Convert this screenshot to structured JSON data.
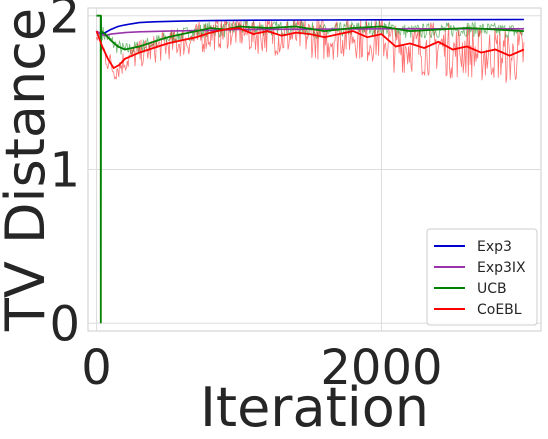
{
  "chart_data": {
    "type": "line",
    "title": "",
    "xlabel": "Iteration",
    "ylabel": "TV Distance",
    "xlim": [
      -60,
      3120
    ],
    "ylim": [
      -0.05,
      2.05
    ],
    "xticks": [
      0,
      2000
    ],
    "yticks": [
      0,
      1,
      2
    ],
    "grid": true,
    "legend_position": "bottom-right",
    "series": [
      {
        "name": "Exp3",
        "color": "#0000cc",
        "x": [
          0,
          30,
          60,
          100,
          150,
          200,
          300,
          400,
          600,
          800,
          1000,
          1500,
          2000,
          2500,
          3000
        ],
        "y": [
          1.9,
          1.88,
          1.89,
          1.91,
          1.93,
          1.94,
          1.955,
          1.96,
          1.965,
          1.968,
          1.97,
          1.972,
          1.973,
          1.974,
          1.975
        ]
      },
      {
        "name": "Exp3IX",
        "color": "#9933aa",
        "x": [
          0,
          30,
          60,
          100,
          200,
          300,
          500,
          800,
          1000,
          1500,
          2000,
          2500,
          3000
        ],
        "y": [
          1.9,
          1.88,
          1.87,
          1.88,
          1.89,
          1.895,
          1.9,
          1.905,
          1.91,
          1.912,
          1.915,
          1.915,
          1.915
        ]
      },
      {
        "name": "UCB",
        "color": "#008000",
        "x": [
          0,
          29,
          30,
          31,
          32,
          60,
          100,
          150,
          200,
          300,
          400,
          500,
          600,
          700,
          800,
          900,
          1000,
          1200,
          1400,
          1600,
          1800,
          2000,
          2200,
          2400,
          2600,
          2800,
          3000
        ],
        "y": [
          2.0,
          2.0,
          0.0,
          2.0,
          1.9,
          1.88,
          1.84,
          1.8,
          1.78,
          1.8,
          1.83,
          1.86,
          1.88,
          1.9,
          1.92,
          1.91,
          1.93,
          1.92,
          1.93,
          1.9,
          1.92,
          1.93,
          1.9,
          1.91,
          1.92,
          1.91,
          1.9
        ]
      },
      {
        "name": "CoEBL",
        "color": "#ff0000",
        "x": [
          0,
          40,
          80,
          120,
          160,
          200,
          300,
          400,
          500,
          600,
          700,
          800,
          900,
          1000,
          1100,
          1200,
          1300,
          1400,
          1500,
          1600,
          1700,
          1800,
          1900,
          2000,
          2100,
          2200,
          2300,
          2400,
          2500,
          2600,
          2700,
          2800,
          2900,
          3000
        ],
        "y": [
          1.9,
          1.8,
          1.72,
          1.66,
          1.68,
          1.72,
          1.76,
          1.79,
          1.82,
          1.84,
          1.86,
          1.89,
          1.91,
          1.92,
          1.88,
          1.9,
          1.87,
          1.89,
          1.88,
          1.86,
          1.88,
          1.9,
          1.86,
          1.88,
          1.8,
          1.82,
          1.79,
          1.83,
          1.78,
          1.8,
          1.76,
          1.78,
          1.74,
          1.78
        ]
      }
    ]
  }
}
